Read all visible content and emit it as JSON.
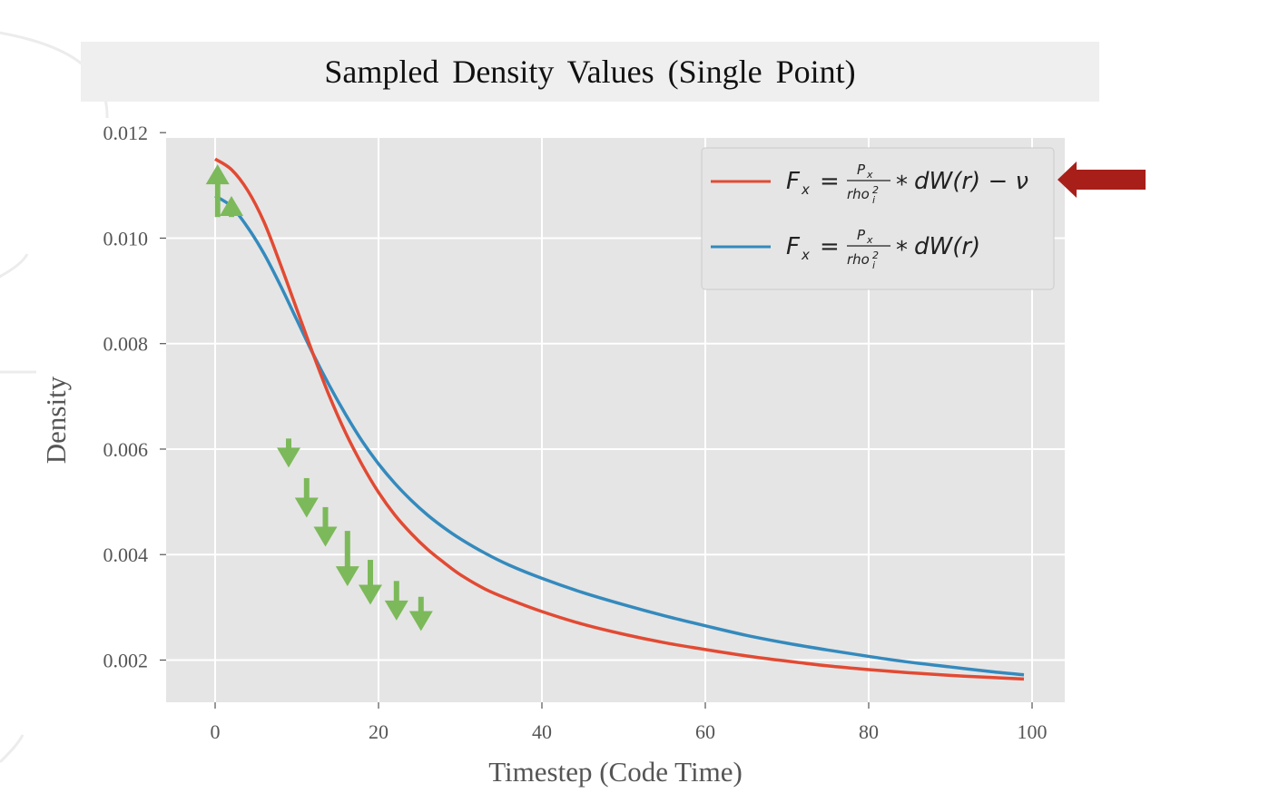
{
  "title": "Sampled Density Values (Single Point)",
  "chart_data": {
    "type": "line",
    "title": "Sampled Density Values (Single Point)",
    "xlabel": "Timestep (Code Time)",
    "ylabel": "Density",
    "xlim": [
      -6,
      104
    ],
    "ylim": [
      0.0012,
      0.0119
    ],
    "xticks": [
      0,
      20,
      40,
      60,
      80,
      100
    ],
    "xtick_labels": [
      "0",
      "20",
      "40",
      "60",
      "80",
      "100"
    ],
    "yticks": [
      0.002,
      0.004,
      0.006,
      0.008,
      0.01,
      0.012
    ],
    "ytick_labels": [
      "0.002",
      "0.004",
      "0.006",
      "0.008",
      "0.010",
      "0.012"
    ],
    "grid": true,
    "legend_position": "top-right",
    "style": "ggplot",
    "x": [
      0,
      2,
      4,
      6,
      8,
      10,
      12,
      14,
      16,
      18,
      20,
      22,
      24,
      26,
      28,
      30,
      33,
      36,
      40,
      45,
      50,
      55,
      60,
      65,
      70,
      75,
      80,
      85,
      90,
      95,
      99
    ],
    "series": [
      {
        "name": "F_x = P_x / rho_i^2 * dW(r) - ν",
        "color": "#e24a33",
        "values": [
          0.0115,
          0.0113,
          0.0109,
          0.0103,
          0.0095,
          0.00865,
          0.0078,
          0.007,
          0.0063,
          0.0057,
          0.00518,
          0.00475,
          0.0044,
          0.0041,
          0.00385,
          0.00362,
          0.00335,
          0.00315,
          0.00292,
          0.00268,
          0.00249,
          0.00233,
          0.0022,
          0.00208,
          0.00198,
          0.00189,
          0.00182,
          0.00176,
          0.00171,
          0.00167,
          0.00164
        ]
      },
      {
        "name": "F_x = P_x / rho_i^2 * dW(r)",
        "color": "#348abd",
        "values": [
          0.0108,
          0.0106,
          0.0102,
          0.0097,
          0.0091,
          0.00845,
          0.0078,
          0.0072,
          0.00665,
          0.00615,
          0.00572,
          0.00535,
          0.00503,
          0.00475,
          0.00451,
          0.0043,
          0.00403,
          0.0038,
          0.00355,
          0.00328,
          0.00305,
          0.00284,
          0.00265,
          0.00247,
          0.00232,
          0.00219,
          0.00207,
          0.00196,
          0.00187,
          0.00178,
          0.00172
        ]
      }
    ],
    "annotations": {
      "arrow_color": "#7cb95a",
      "up_arrows": [
        {
          "x": 0.3,
          "from": 0.0104,
          "to": 0.0114
        },
        {
          "x": 2.0,
          "from": 0.0104,
          "to": 0.0108
        }
      ],
      "down_arrows": [
        {
          "x": 9.0,
          "from": 0.0062,
          "to": 0.00565
        },
        {
          "x": 11.2,
          "from": 0.00545,
          "to": 0.0047
        },
        {
          "x": 13.5,
          "from": 0.0049,
          "to": 0.00415
        },
        {
          "x": 16.2,
          "from": 0.00445,
          "to": 0.0034
        },
        {
          "x": 19.0,
          "from": 0.0039,
          "to": 0.00305
        },
        {
          "x": 22.2,
          "from": 0.0035,
          "to": 0.00275
        },
        {
          "x": 25.2,
          "from": 0.0032,
          "to": 0.00255
        }
      ],
      "legend_pointer_color": "#a81f1a"
    }
  }
}
